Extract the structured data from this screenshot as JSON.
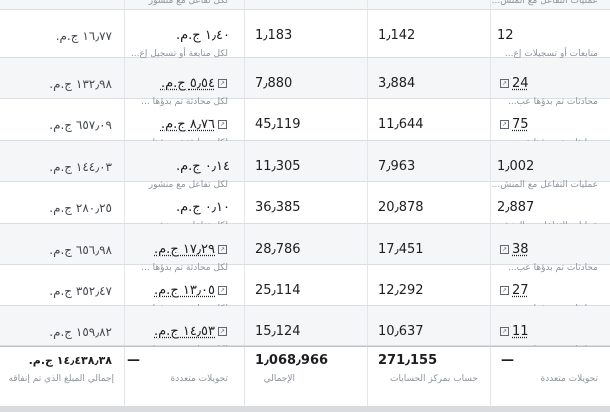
{
  "rows": [
    {
      "result_sub": "عمليات التفاعل مع المنش...",
      "reach": "",
      "impressions": "",
      "cost_sub": "لكل تفاعل مع منشور",
      "amount": ""
    },
    {
      "result": "12",
      "result_link": false,
      "result_ext": false,
      "result_sub": "متابعات أو تسجيلات إع...",
      "reach": "1٫142",
      "impressions": "1٫183",
      "cost": "١٫٤٠ ج.م.",
      "cost_link": false,
      "cost_ext": false,
      "cost_sub": "لكل متابعة أو تسجيل إع...",
      "amount": "١٦٫٧٧ ج.م."
    },
    {
      "result": "24",
      "result_link": true,
      "result_ext": true,
      "result_sub": "محادثات تم بدؤها عب...",
      "reach": "3٫884",
      "impressions": "7٫880",
      "cost": "٥٫٥٤ ج.م.",
      "cost_link": true,
      "cost_ext": true,
      "cost_sub": "لكل محادثة تم بدؤها ...",
      "amount": "١٣٢٫٩٨ ج.م."
    },
    {
      "result": "75",
      "result_link": true,
      "result_ext": true,
      "result_sub": "محادثات تم بدؤها عب...",
      "reach": "11٫644",
      "impressions": "45٫119",
      "cost": "٨٫٧٦ ج.م.",
      "cost_link": true,
      "cost_ext": true,
      "cost_sub": "لكل محادثة تم بدؤها ...",
      "amount": "٦٥٧٫٠٩ ج.م."
    },
    {
      "result": "1٫002",
      "result_link": false,
      "result_ext": false,
      "result_sub": "عمليات التفاعل مع المنش...",
      "reach": "7٫963",
      "impressions": "11٫305",
      "cost": "٠٫١٤ ج.م.",
      "cost_link": false,
      "cost_ext": false,
      "cost_sub": "لكل تفاعل مع منشور",
      "amount": "١٤٤٫٠٣ ج.م."
    },
    {
      "result": "2٫887",
      "result_link": false,
      "result_ext": false,
      "result_sub": "عمليات التفاعل مع المنش...",
      "reach": "20٫878",
      "impressions": "36٫385",
      "cost": "٠٫١٠ ج.م.",
      "cost_link": false,
      "cost_ext": false,
      "cost_sub": "لكل تفاعل مع منشور",
      "amount": "٢٨٠٫٢٥ ج.م."
    },
    {
      "result": "38",
      "result_link": true,
      "result_ext": true,
      "result_sub": "محادثات تم بدؤها عب...",
      "reach": "17٫451",
      "impressions": "28٫786",
      "cost": "١٧٫٢٩ ج.م.",
      "cost_link": true,
      "cost_ext": true,
      "cost_sub": "لكل محادثة تم بدؤها ...",
      "amount": "٦٥٦٫٩٨ ج.م."
    },
    {
      "result": "27",
      "result_link": true,
      "result_ext": true,
      "result_sub": "محادثات تم بدؤها عب...",
      "reach": "12٫292",
      "impressions": "25٫114",
      "cost": "١٣٫٠٥ ج.م.",
      "cost_link": true,
      "cost_ext": true,
      "cost_sub": "لكل محادثة تم بدؤها ...",
      "amount": "٣٥٢٫٤٧ ج.م."
    },
    {
      "result": "11",
      "result_link": true,
      "result_ext": true,
      "result_sub": "محادثات تم بدؤها عب...",
      "reach": "10٫637",
      "impressions": "15٫124",
      "cost": "١٤٫٥٣ ج.م.",
      "cost_link": true,
      "cost_ext": true,
      "cost_sub": "لكل محادثة تم بدؤها ...",
      "amount": "١٥٩٫٨٢ ج.م."
    }
  ],
  "totals": {
    "result": "—",
    "result_sub": "تحويلات متعددة",
    "reach": "271٫155",
    "reach_sub": "حساب بمركز الحسابات",
    "impressions": "1٫068٫966",
    "impressions_sub": "الإجمالي",
    "cost": "—",
    "cost_sub": "تحويلات متعددة",
    "amount": "١٤٫٤٣٨٫٣٨ ج.م.",
    "amount_sub": "إجمالي المبلغ الذي تم إنفاقه"
  },
  "icons": {
    "external": "external-link-icon"
  },
  "colors": {
    "row_alt": "#f5f6f7",
    "border": "#dadde1",
    "muted": "#8d949e"
  }
}
